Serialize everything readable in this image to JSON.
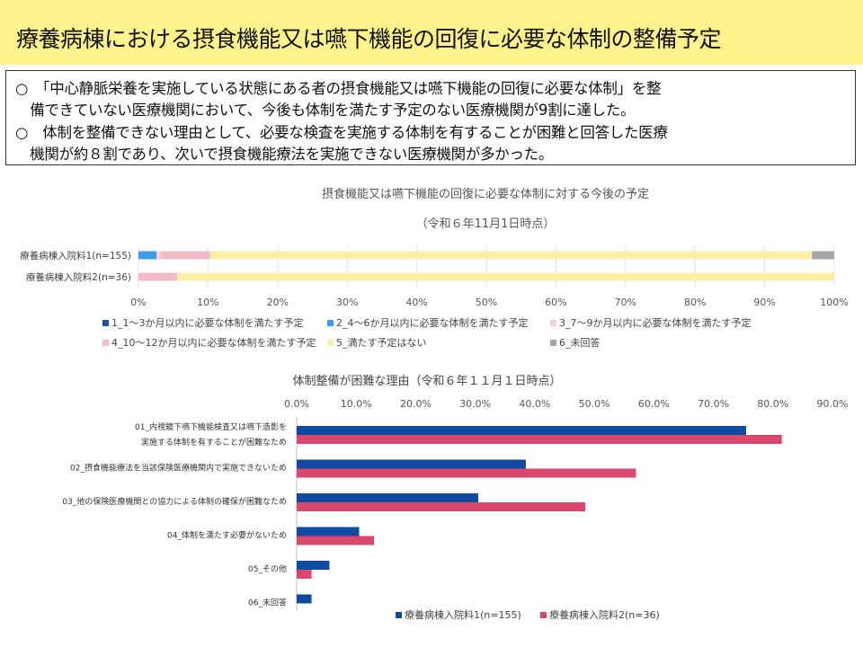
{
  "page": {
    "title": "療養病棟における摂食機能又は嚥下機能の回復に必要な体制の整備予定"
  },
  "summary": {
    "lines": [
      "○　「中心静脈栄養を実施している状態にある者の摂食機能又は嚥下機能の回復に必要な体制」を整",
      "　備できていない医療機関において、今後も体制を満たす予定のない医療機関が9割に達した。",
      "○　体制を整備できない理由として、必要な検査を実施する体制を有することが困難と回答した医療",
      "　機関が約８割であり、次いで摂食機能療法を実施できない医療機関が多かった。"
    ]
  },
  "chart_data": [
    {
      "type": "bar",
      "orientation": "horizontal",
      "stacked": true,
      "title": "摂食機能又は嚥下機能の回復に必要な体制に対する今後の予定",
      "subtitle": "（令和６年11月1日時点）",
      "categories": [
        "療養病棟入院料1(n=155)",
        "療養病棟入院料2(n=36)"
      ],
      "xlim": [
        0,
        100
      ],
      "x_ticks": [
        "0%",
        "10%",
        "20%",
        "30%",
        "40%",
        "50%",
        "60%",
        "70%",
        "80%",
        "90%",
        "100%"
      ],
      "series": [
        {
          "name": "1_1～3か月以内に必要な体制を満たす予定",
          "color": "#1f4e9c",
          "values": [
            0,
            0
          ]
        },
        {
          "name": "2_4～6か月以内に必要な体制を満たす予定",
          "color": "#3d9be9",
          "values": [
            2.6,
            0
          ]
        },
        {
          "name": "3_7～9か月以内に必要な体制を満たす予定",
          "color": "#f5d0d8",
          "values": [
            0.6,
            0
          ]
        },
        {
          "name": "4_10～12か月以内に必要な体制を満たす予定",
          "color": "#f4b8c8",
          "values": [
            7.1,
            5.6
          ]
        },
        {
          "name": "5_満たす予定はない",
          "color": "#fcefa3",
          "values": [
            86.5,
            94.4
          ]
        },
        {
          "name": "6_未回答",
          "color": "#a6a6a6",
          "values": [
            3.2,
            0
          ]
        }
      ],
      "legend": "bottom"
    },
    {
      "type": "bar",
      "orientation": "horizontal",
      "title": "体制整備が困難な理由（令和６年１１月１日時点）",
      "categories": [
        [
          "01_内視鏡下嚥下機能検査又は嚥下造影を",
          "実施する体制を有することが困難なため"
        ],
        [
          "02_摂食機能療法を当該保険医療機関内で実施できないため"
        ],
        [
          "03_他の保険医療機関との協力による体制の確保が困難なため"
        ],
        [
          "04_体制を満たす必要がないため"
        ],
        [
          "05_その他"
        ],
        [
          "06_未回答"
        ]
      ],
      "xlim": [
        0,
        90
      ],
      "x_ticks": [
        "0.0%",
        "10.0%",
        "20.0%",
        "30.0%",
        "40.0%",
        "50.0%",
        "60.0%",
        "70.0%",
        "80.0%",
        "90.0%"
      ],
      "x_axis_position": "top",
      "series": [
        {
          "name": "療養病棟入院料1(n=155)",
          "color": "#0f4aa3",
          "values": [
            75.5,
            38.5,
            30.5,
            10.5,
            5.5,
            2.5
          ]
        },
        {
          "name": "療養病棟入院料2(n=36)",
          "color": "#d9476c",
          "values": [
            81.5,
            57,
            48.5,
            13,
            2.5,
            0
          ]
        }
      ],
      "legend": "bottom"
    }
  ]
}
